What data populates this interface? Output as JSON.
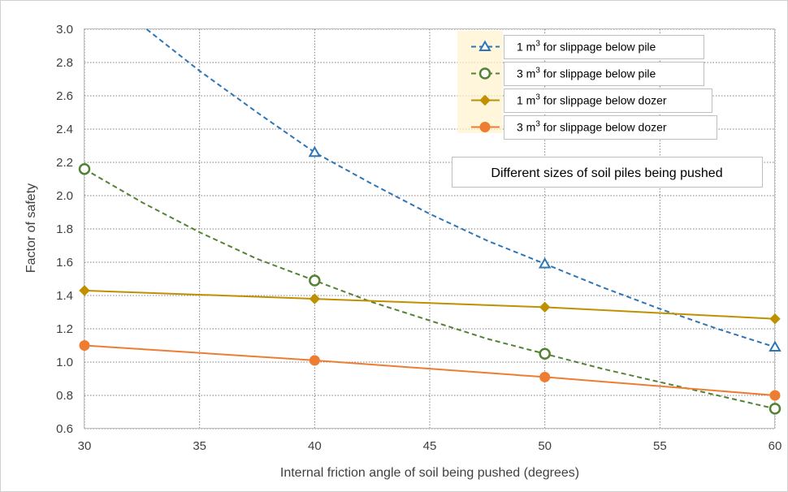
{
  "chart_data": {
    "type": "line",
    "xlabel": "Internal friction angle of soil being pushed (degrees)",
    "ylabel": "Factor of safety",
    "xlim": [
      30,
      60
    ],
    "ylim": [
      0.6,
      3.0
    ],
    "xticks": [
      "30",
      "35",
      "40",
      "45",
      "50",
      "55",
      "60"
    ],
    "yticks": [
      "0.6",
      "0.8",
      "1.0",
      "1.2",
      "1.4",
      "1.6",
      "1.8",
      "2.0",
      "2.2",
      "2.4",
      "2.6",
      "2.8",
      "3.0"
    ],
    "grid": true,
    "legend_position": "top-right",
    "annotation": "Different sizes of soil piles being pushed",
    "series": [
      {
        "name": "1 m³ for slippage below pile",
        "legend_prefix": "1 m",
        "legend_sup": "3",
        "legend_suffix": " for slippage below pile",
        "color": "#2e75b6",
        "dashed": true,
        "marker": "triangle-open",
        "x": [
          40,
          50,
          60
        ],
        "y": [
          2.26,
          1.59,
          1.09
        ],
        "curve_x": [
          32.7,
          35,
          37.5,
          40,
          42.5,
          45,
          47.5,
          50,
          52.5,
          55,
          57.5,
          60
        ],
        "curve_y": [
          3.0,
          2.75,
          2.5,
          2.26,
          2.07,
          1.89,
          1.73,
          1.59,
          1.45,
          1.32,
          1.2,
          1.09
        ]
      },
      {
        "name": "3 m³ for slippage below pile",
        "legend_prefix": "3 m",
        "legend_sup": "3",
        "legend_suffix": " for slippage below pile",
        "color": "#548235",
        "dashed": true,
        "marker": "circle-open",
        "x": [
          30,
          40,
          50,
          60
        ],
        "y": [
          2.16,
          1.49,
          1.05,
          0.72
        ],
        "curve_x": [
          30,
          32.5,
          35,
          37.5,
          40,
          42.5,
          45,
          47.5,
          50,
          52.5,
          55,
          57.5,
          60
        ],
        "curve_y": [
          2.16,
          1.96,
          1.78,
          1.62,
          1.49,
          1.36,
          1.25,
          1.14,
          1.05,
          0.96,
          0.88,
          0.8,
          0.72
        ]
      },
      {
        "name": "1 m³ for slippage below dozer",
        "legend_prefix": "1 m",
        "legend_sup": "3",
        "legend_suffix": " for slippage below dozer",
        "color": "#bf9000",
        "dashed": false,
        "marker": "diamond",
        "x": [
          30,
          40,
          50,
          60
        ],
        "y": [
          1.43,
          1.38,
          1.33,
          1.26
        ],
        "curve_x": [
          30,
          40,
          50,
          60
        ],
        "curve_y": [
          1.43,
          1.38,
          1.33,
          1.26
        ]
      },
      {
        "name": "3 m³ for slippage below dozer",
        "legend_prefix": "3 m",
        "legend_sup": "3",
        "legend_suffix": " for slippage below dozer",
        "color": "#ed7d31",
        "dashed": false,
        "marker": "circle",
        "x": [
          30,
          40,
          50,
          60
        ],
        "y": [
          1.1,
          1.01,
          0.91,
          0.8
        ],
        "curve_x": [
          30,
          40,
          50,
          60
        ],
        "curve_y": [
          1.1,
          1.01,
          0.91,
          0.8
        ]
      }
    ]
  }
}
